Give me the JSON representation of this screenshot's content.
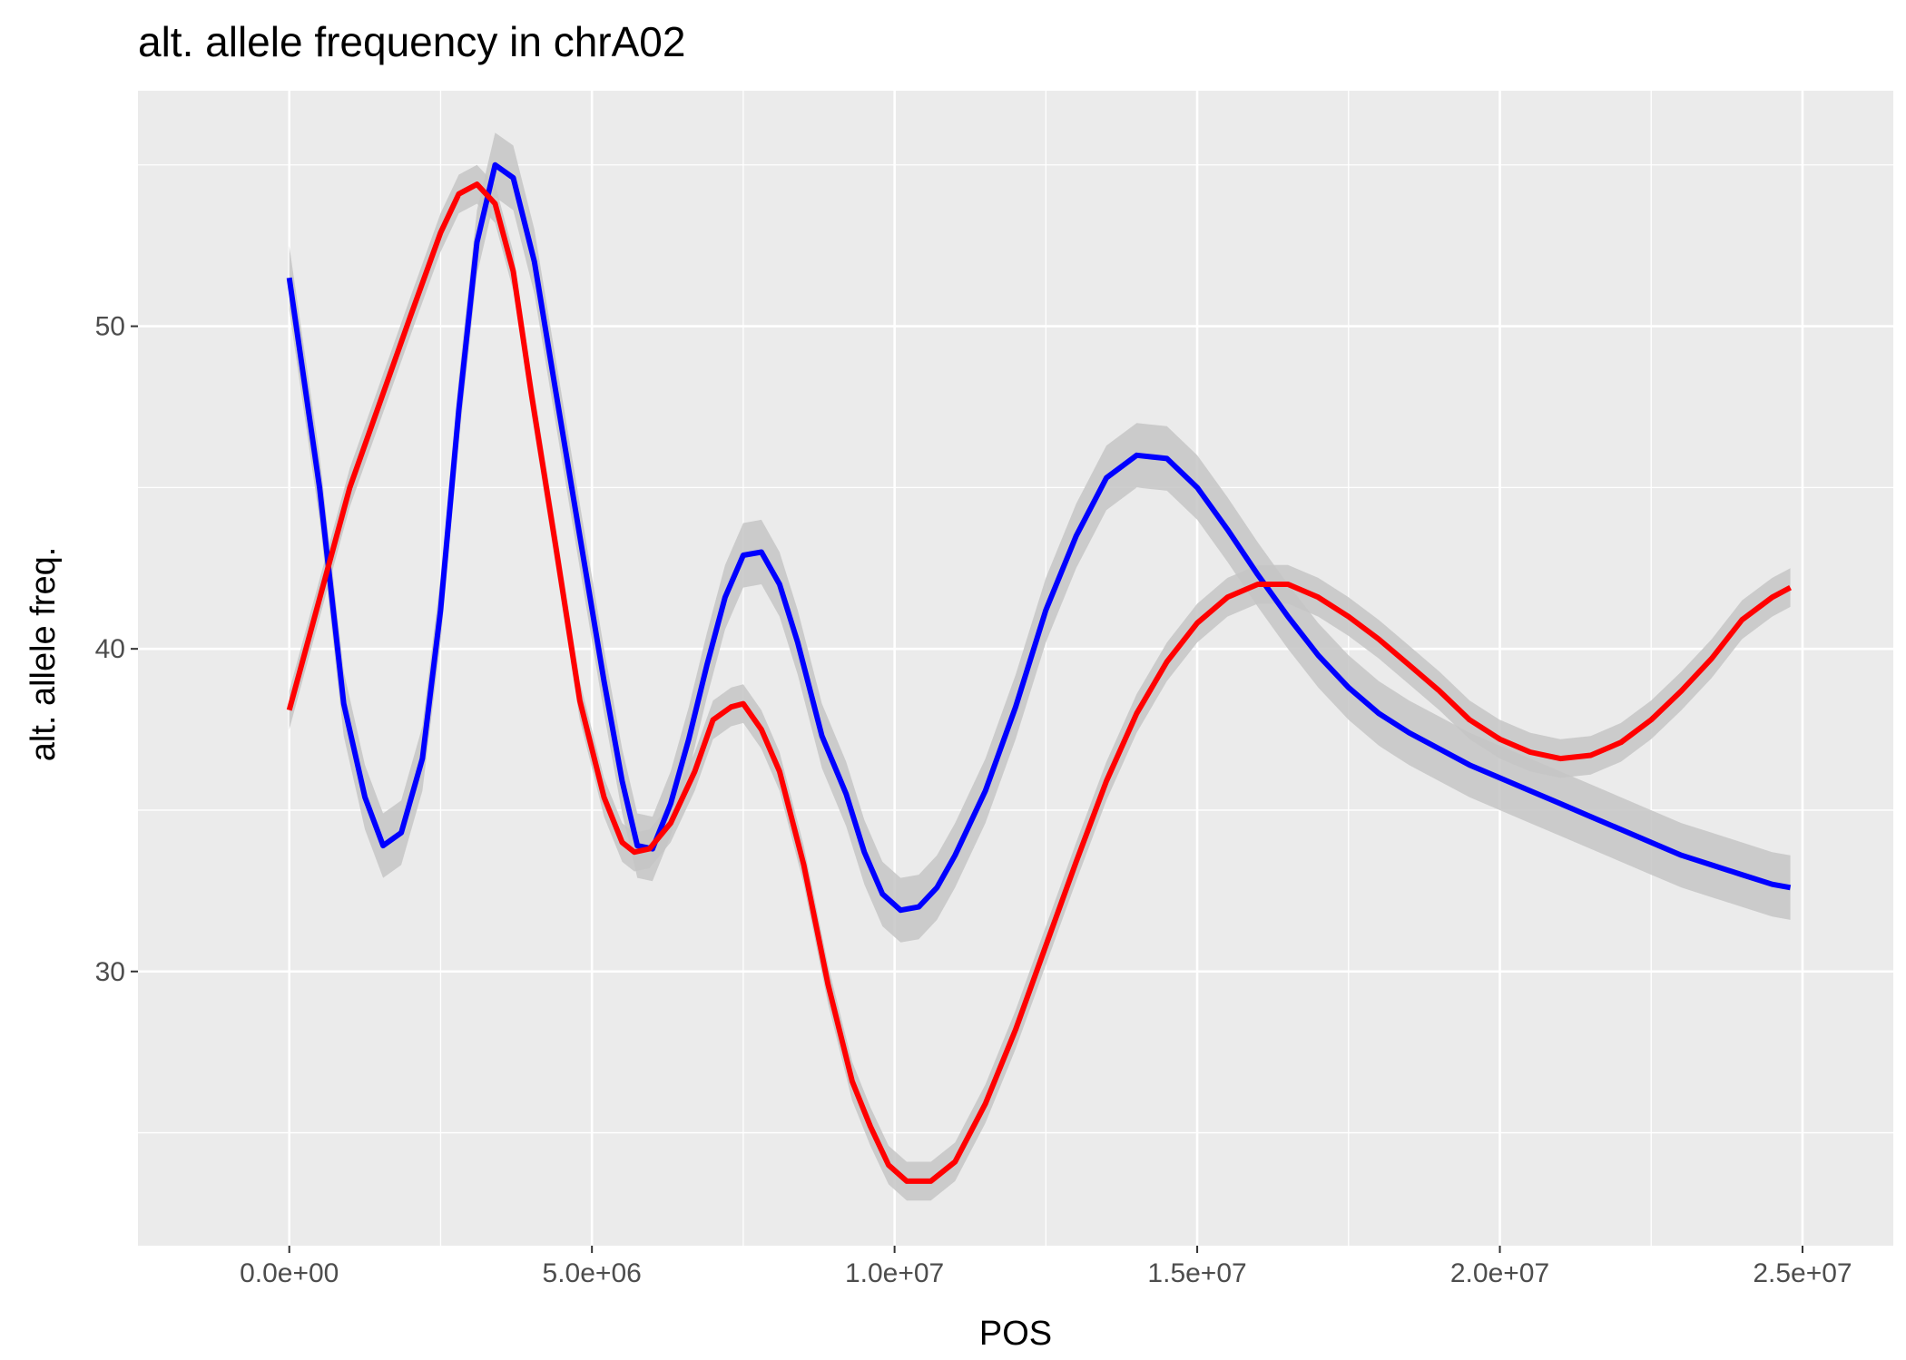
{
  "chart_data": {
    "type": "line",
    "title": "alt. allele frequency in chrA02",
    "xlabel": "POS",
    "ylabel": "alt. allele freq.",
    "xlim": [
      -2500000,
      26500000
    ],
    "ylim": [
      21.5,
      57.3
    ],
    "x_ticks": [
      0,
      5000000,
      10000000,
      15000000,
      20000000,
      25000000
    ],
    "x_tick_labels": [
      "0.0e+00",
      "5.0e+06",
      "1.0e+07",
      "1.5e+07",
      "2.0e+07",
      "2.5e+07"
    ],
    "y_ticks": [
      30,
      40,
      50
    ],
    "y_tick_labels": [
      "30",
      "40",
      "50"
    ],
    "grid": true,
    "panel_background": "#ebebeb",
    "confidence_band_color": "#c6c6c6",
    "legend": "none",
    "series": [
      {
        "color": "#0000ff",
        "x": [
          0,
          500000,
          900000,
          1250000,
          1550000,
          1850000,
          2200000,
          2500000,
          2800000,
          3100000,
          3400000,
          3700000,
          4050000,
          4400000,
          4800000,
          5200000,
          5500000,
          5750000,
          6000000,
          6300000,
          6600000,
          6900000,
          7200000,
          7500000,
          7800000,
          8100000,
          8400000,
          8800000,
          9200000,
          9500000,
          9800000,
          10100000,
          10400000,
          10700000,
          11000000,
          11500000,
          12000000,
          12500000,
          13000000,
          13500000,
          14000000,
          14500000,
          15000000,
          15500000,
          16000000,
          16500000,
          17000000,
          17500000,
          18000000,
          18500000,
          19000000,
          19500000,
          20000000,
          20500000,
          21000000,
          21500000,
          22000000,
          22500000,
          23000000,
          23500000,
          24000000,
          24500000,
          24800000
        ],
        "y": [
          51.5,
          45.0,
          38.3,
          35.4,
          33.9,
          34.3,
          36.6,
          41.2,
          47.4,
          52.6,
          55.0,
          54.6,
          52.0,
          48.0,
          43.5,
          39.0,
          35.9,
          33.9,
          33.8,
          35.2,
          37.2,
          39.5,
          41.6,
          42.9,
          43.0,
          42.0,
          40.2,
          37.3,
          35.5,
          33.7,
          32.4,
          31.9,
          32.0,
          32.6,
          33.6,
          35.6,
          38.2,
          41.2,
          43.5,
          45.3,
          46.0,
          45.9,
          45.0,
          43.7,
          42.3,
          41.0,
          39.8,
          38.8,
          38.0,
          37.4,
          36.9,
          36.4,
          36.0,
          35.6,
          35.2,
          34.8,
          34.4,
          34.0,
          33.6,
          33.3,
          33.0,
          32.7,
          32.6
        ],
        "band_halfwidth": 1.0
      },
      {
        "color": "#ff0000",
        "x": [
          0,
          1000000,
          2000000,
          2500000,
          2800000,
          3100000,
          3400000,
          3700000,
          4000000,
          4400000,
          4800000,
          5200000,
          5500000,
          5700000,
          5950000,
          6300000,
          6700000,
          7000000,
          7300000,
          7500000,
          7800000,
          8100000,
          8500000,
          8900000,
          9300000,
          9600000,
          9900000,
          10200000,
          10600000,
          11000000,
          11500000,
          12000000,
          12500000,
          13000000,
          13500000,
          14000000,
          14500000,
          15000000,
          15500000,
          16000000,
          16500000,
          17000000,
          17500000,
          18000000,
          18500000,
          19000000,
          19500000,
          20000000,
          20500000,
          21000000,
          21500000,
          22000000,
          22500000,
          23000000,
          23500000,
          24000000,
          24500000,
          24800000
        ],
        "y": [
          38.1,
          45.0,
          50.3,
          52.9,
          54.1,
          54.4,
          53.8,
          51.7,
          47.9,
          43.2,
          38.4,
          35.4,
          34.0,
          33.7,
          33.8,
          34.6,
          36.2,
          37.8,
          38.2,
          38.3,
          37.5,
          36.2,
          33.3,
          29.6,
          26.6,
          25.2,
          24.0,
          23.5,
          23.5,
          24.1,
          25.9,
          28.2,
          30.8,
          33.4,
          35.9,
          38.0,
          39.6,
          40.8,
          41.6,
          42.0,
          42.0,
          41.6,
          41.0,
          40.3,
          39.5,
          38.7,
          37.8,
          37.2,
          36.8,
          36.6,
          36.7,
          37.1,
          37.8,
          38.7,
          39.7,
          40.9,
          41.6,
          41.9
        ],
        "band_halfwidth": 0.6
      }
    ]
  }
}
